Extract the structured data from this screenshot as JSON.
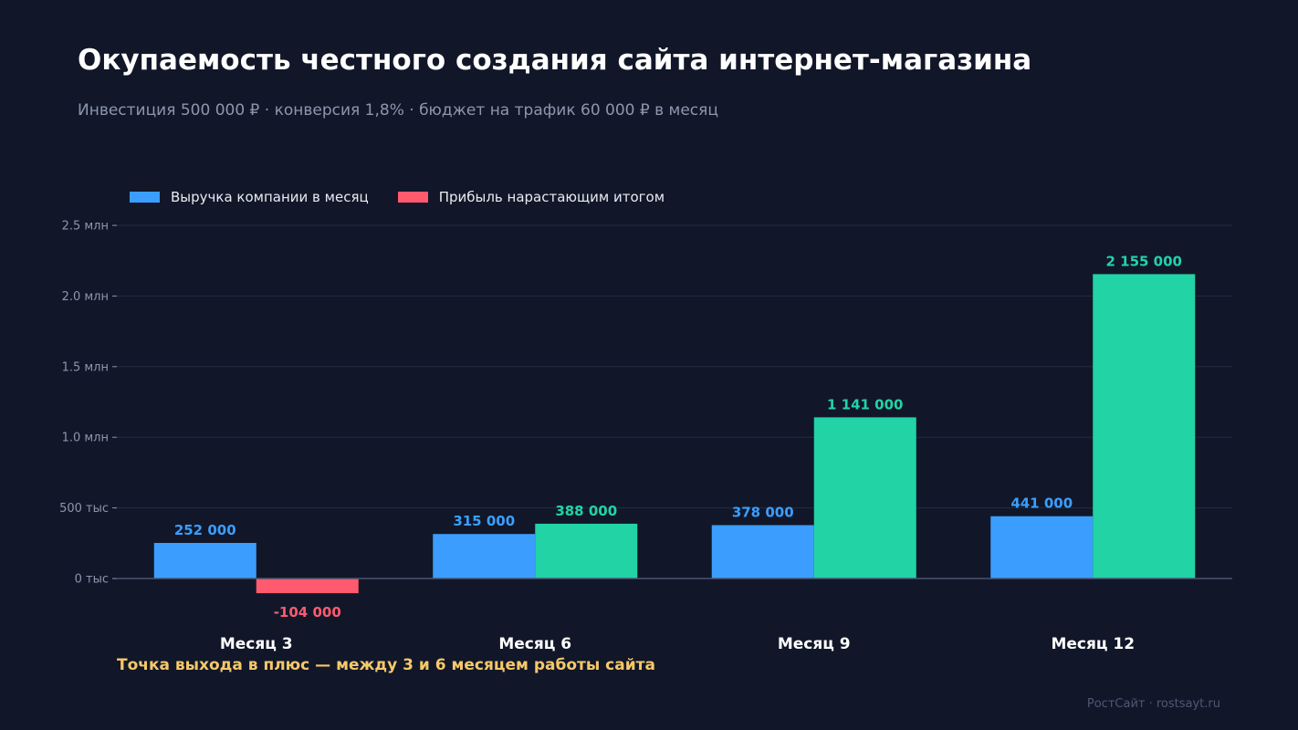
{
  "header": {
    "title": "Окупаемость честного создания сайта интернет-магазина",
    "subtitle": "Инвестиция 500 000 ₽ · конверсия 1,8% · бюджет на трафик 60 000 ₽ в месяц"
  },
  "note": "Точка выхода в плюс — между 3 и 6 месяцем работы сайта",
  "footer": "РостСайт · rostsayt.ru",
  "chart_data": {
    "type": "bar",
    "categories": [
      "Месяц 3",
      "Месяц 6",
      "Месяц 9",
      "Месяц 12"
    ],
    "series": [
      {
        "name": "Выручка компании в месяц",
        "values": [
          252000,
          315000,
          378000,
          441000
        ],
        "labels": [
          "252 000",
          "315 000",
          "378 000",
          "441 000"
        ],
        "color": "#3b9eff"
      },
      {
        "name": "Прибыль нарастающим итогом",
        "values": [
          -104000,
          388000,
          1141000,
          2155000
        ],
        "labels": [
          "-104 000",
          "388 000",
          "1 141 000",
          "2 155 000"
        ],
        "color_positive": "#22d3a6",
        "color_negative": "#ff5a6e",
        "legend_color": "#ff5a6e"
      }
    ],
    "ylim": [
      -250000,
      2500000
    ],
    "yticks": [
      0,
      500000,
      1000000,
      1500000,
      2000000,
      2500000
    ],
    "ytick_labels": [
      "0 тыс",
      "500 тыс",
      "1.0 млн",
      "1.5 млн",
      "2.0 млн",
      "2.5 млн"
    ],
    "grid": true,
    "legend": "top-left",
    "colors": {
      "background": "#111729",
      "grid": "#232c42",
      "axis": "#4a5470",
      "tick_text": "#8d96ad",
      "category_text": "#ffffff"
    }
  }
}
